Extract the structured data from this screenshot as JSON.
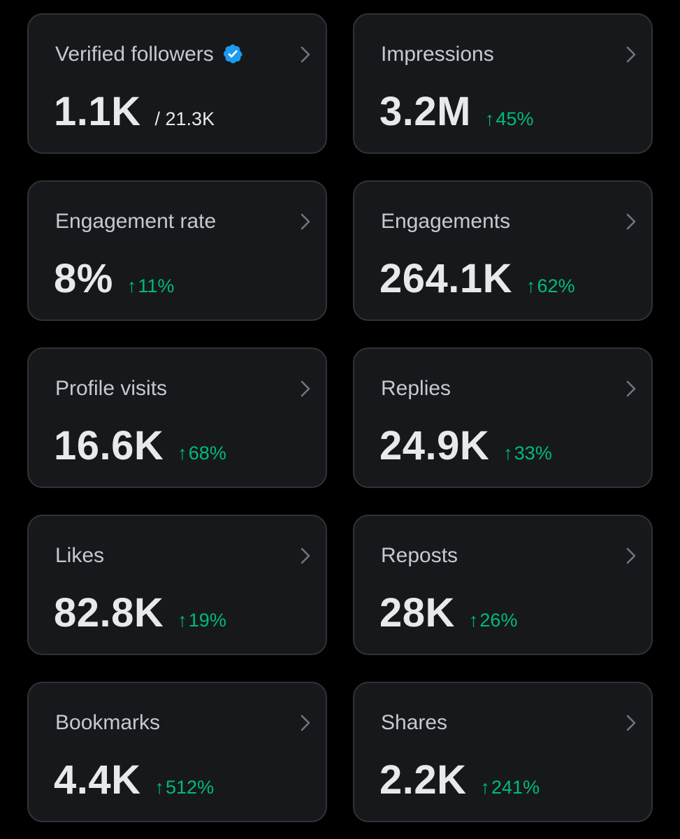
{
  "colors": {
    "background": "#000000",
    "card_background": "#16181c",
    "card_border": "#2f3336",
    "label": "#c6c9cd",
    "value": "#e7e9ea",
    "positive_change": "#00ba7c",
    "verified_badge": "#1d9bf0"
  },
  "icons": {
    "chevron": "chevron-right-icon",
    "verified": "verified-badge-icon",
    "change_arrow": "arrow-up-icon"
  },
  "change_arrow_glyph": "↑",
  "metrics": [
    {
      "label": "Verified followers",
      "value": "1.1K",
      "secondary": "/ 21.3K",
      "verified": true
    },
    {
      "label": "Impressions",
      "value": "3.2M",
      "change": "45%"
    },
    {
      "label": "Engagement rate",
      "value": "8%",
      "change": "11%"
    },
    {
      "label": "Engagements",
      "value": "264.1K",
      "change": "62%"
    },
    {
      "label": "Profile visits",
      "value": "16.6K",
      "change": "68%"
    },
    {
      "label": "Replies",
      "value": "24.9K",
      "change": "33%"
    },
    {
      "label": "Likes",
      "value": "82.8K",
      "change": "19%"
    },
    {
      "label": "Reposts",
      "value": "28K",
      "change": "26%"
    },
    {
      "label": "Bookmarks",
      "value": "4.4K",
      "change": "512%"
    },
    {
      "label": "Shares",
      "value": "2.2K",
      "change": "241%"
    }
  ]
}
